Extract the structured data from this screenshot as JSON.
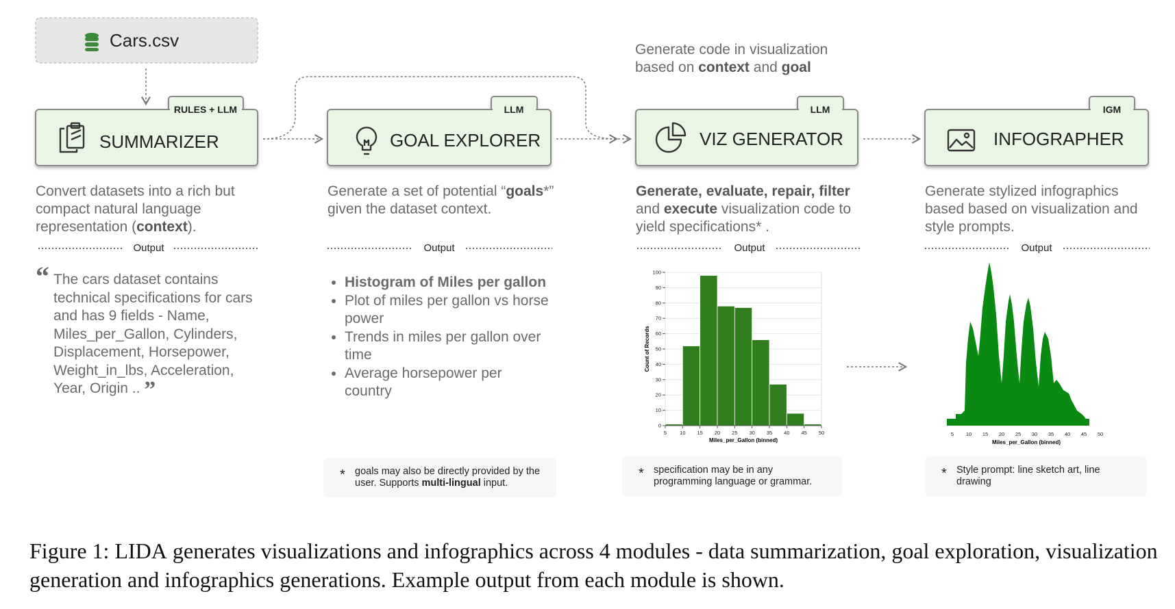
{
  "source": {
    "label": "Cars.csv"
  },
  "annotation": [
    {
      "t": "Generate code in visualization based on "
    },
    {
      "t": "context",
      "b": true
    },
    {
      "t": " and "
    },
    {
      "t": "goal",
      "b": true
    }
  ],
  "nodes": [
    {
      "tag": "RULES + LLM",
      "title": "SUMMARIZER",
      "description": [
        {
          "t": "Convert datasets into a rich but compact natural language representation ("
        },
        {
          "t": "context",
          "b": true
        },
        {
          "t": ")."
        }
      ],
      "output_label": "Output",
      "output": {
        "quote_open": "“",
        "text": "The cars dataset contains technical specifications for cars and has 9 fields - Name, Miles_per_Gallon, Cylinders, Displacement, Horsepower, Weight_in_lbs, Acceleration, Year, Origin .. ",
        "quote_close": "”"
      }
    },
    {
      "tag": "LLM",
      "title": "GOAL EXPLORER",
      "description": [
        {
          "t": "Generate a set of potential “"
        },
        {
          "t": "goals",
          "b": true
        },
        {
          "t": "*” given the dataset context."
        }
      ],
      "output_label": "Output",
      "output": {
        "items": [
          {
            "t": "Histogram of Miles per gallon",
            "b": true
          },
          {
            "t": "Plot of miles per gallon vs horse power"
          },
          {
            "t": "Trends in miles per gallon over time"
          },
          {
            "t": "Average horsepower per country"
          }
        ]
      },
      "footnote": {
        "mark": "*",
        "runs": [
          {
            "t": "goals may also be directly provided by the user. Supports "
          },
          {
            "t": "multi-lingual",
            "b": true
          },
          {
            "t": " input."
          }
        ]
      }
    },
    {
      "tag": "LLM",
      "title": "VIZ GENERATOR",
      "description": [
        {
          "t": "Generate, evaluate, repair, filter",
          "b": true
        },
        {
          "t": " and "
        },
        {
          "t": "execute",
          "b": true
        },
        {
          "t": " visualization code to yield specifications* ."
        }
      ],
      "output_label": "Output",
      "footnote": {
        "mark": "*",
        "runs": [
          {
            "t": "specification may be in any programming language or grammar."
          }
        ]
      }
    },
    {
      "tag": "IGM",
      "title": "INFOGRAPHER",
      "description": [
        {
          "t": "Generate stylized infographics based based on visualization and style prompts."
        }
      ],
      "output_label": "Output",
      "footnote": {
        "mark": "*",
        "runs": [
          {
            "t": "Style prompt: line sketch art, line drawing"
          }
        ]
      }
    }
  ],
  "chart_data": {
    "type": "histogram",
    "bins": [
      5,
      10,
      15,
      20,
      25,
      30,
      35,
      40,
      45,
      50
    ],
    "values": [
      1,
      52,
      98,
      78,
      77,
      56,
      27,
      8,
      1
    ],
    "color": "#2f7d1c",
    "xlim": [
      5,
      50
    ],
    "ylim": [
      0,
      100
    ],
    "xticks": [
      5,
      10,
      15,
      20,
      25,
      30,
      35,
      40,
      45,
      50
    ],
    "yticks": [
      0,
      10,
      20,
      30,
      40,
      50,
      60,
      70,
      80,
      90,
      100
    ],
    "x_label": "Miles_per_Gallon (binned)",
    "y_label": "Count of Records"
  },
  "caption": [
    {
      "t": "Figure 1: "
    },
    {
      "t": "LIDA",
      "sc": true
    },
    {
      "t": " generates visualizations and infographics across 4 modules - data summarization, goal exploration, visualization generation and infographics generations. Example output from each module is shown."
    }
  ]
}
